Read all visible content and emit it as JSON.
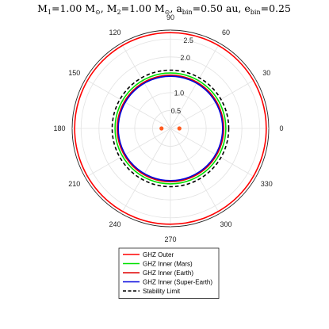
{
  "chart_data": {
    "type": "polar-line",
    "title": {
      "m1_label": "M",
      "m1_sub": "1",
      "m1_value": "=1.00 M",
      "m1_unit_sub": "⊙",
      "m2_label": ", M",
      "m2_sub": "2",
      "m2_value": "=1.00 M",
      "m2_unit_sub": "⊙",
      "a_label": ", a",
      "a_sub": "bin",
      "a_value": "=0.50 au, e",
      "e_sub": "bin",
      "e_value": "=0.25"
    },
    "angular_ticks": [
      0,
      30,
      60,
      90,
      120,
      150,
      180,
      210,
      240,
      270,
      300,
      330
    ],
    "radial_ticks": [
      {
        "value": 0.5,
        "label": "0.5"
      },
      {
        "value": 1.0,
        "label": "1.0"
      },
      {
        "value": 1.5,
        "label": "1.5"
      },
      {
        "value": 2.0,
        "label": "2.0"
      },
      {
        "value": 2.5,
        "label": "2.5"
      }
    ],
    "rlim": [
      0,
      2.75
    ],
    "grid": true,
    "series": [
      {
        "name": "GHZ Outer",
        "color": "#ff0000",
        "style": "solid",
        "radius": 2.68
      },
      {
        "name": "GHZ Inner (Mars)",
        "color": "#00e000",
        "style": "solid",
        "radius": 1.55
      },
      {
        "name": "GHZ Inner (Earth)",
        "color": "#e00000",
        "style": "solid",
        "radius": 1.49
      },
      {
        "name": "GHZ Inner (Super-Earth)",
        "color": "#0000dd",
        "style": "solid",
        "radius": 1.46
      },
      {
        "name": "Stability Limit",
        "color": "#000000",
        "style": "dashed",
        "radius": 1.63
      }
    ],
    "stars": [
      {
        "theta": 0,
        "r": 0.25,
        "color": "#ff5a1f"
      },
      {
        "theta": 180,
        "r": 0.25,
        "color": "#ff5a1f"
      }
    ],
    "legend_position": "bottom"
  }
}
